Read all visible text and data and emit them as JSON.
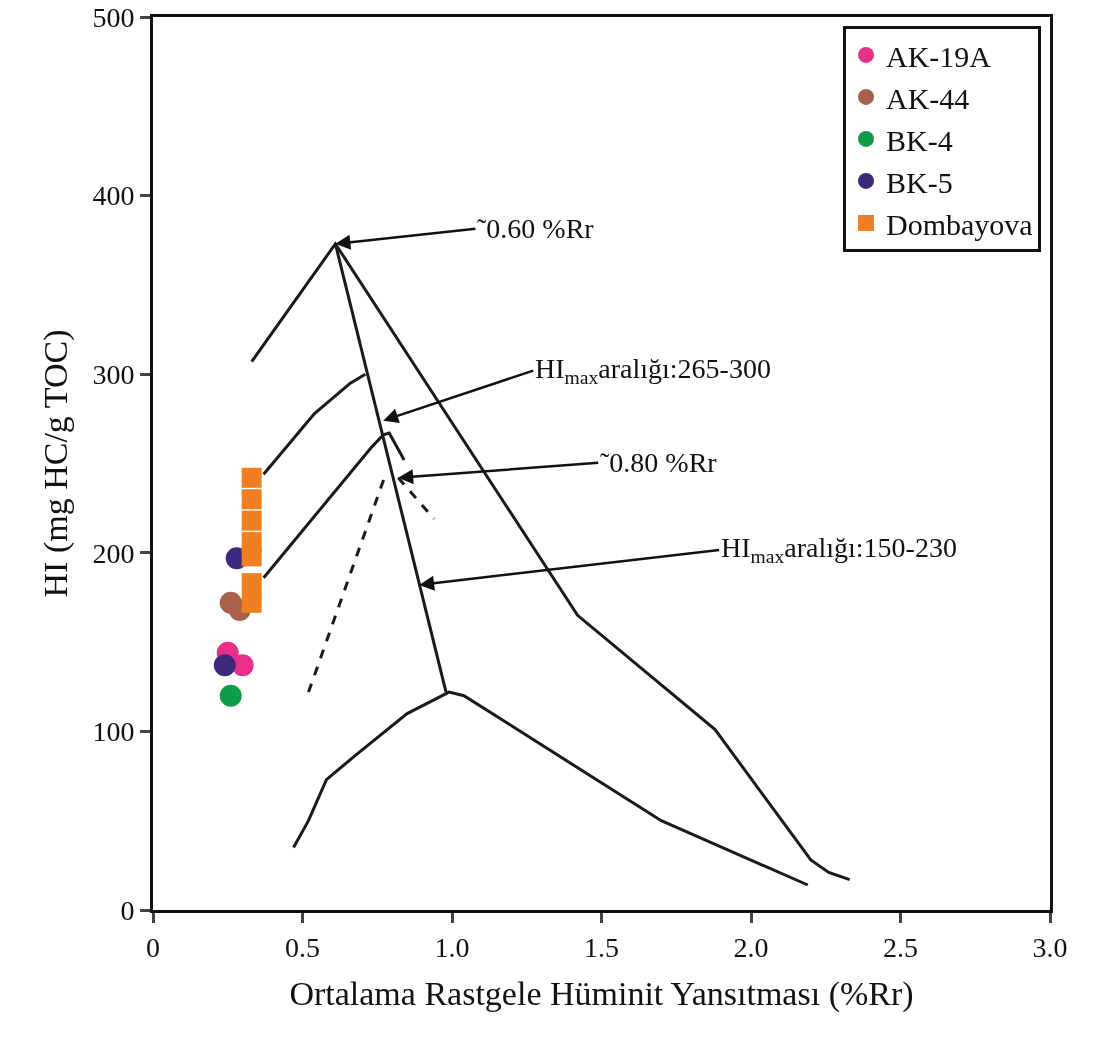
{
  "chart_data": {
    "type": "scatter",
    "xlabel": "Ortalama Rastgele Hüminit Yansıtması (%Rr)",
    "ylabel": "HI (mg HC/g TOC)",
    "xlim": [
      0,
      3
    ],
    "xticks": [
      0,
      {
        "value": 0.5,
        "label": "0.5"
      },
      {
        "value": 1,
        "label": "1.0"
      },
      {
        "value": 1.5,
        "label": "1.5"
      },
      {
        "value": 2,
        "label": "2.0"
      },
      {
        "value": 2.5,
        "label": "2.5"
      },
      {
        "value": 3,
        "label": "3.0"
      }
    ],
    "ylim": [
      0,
      500
    ],
    "yticks": [
      0,
      100,
      200,
      300,
      400,
      500
    ],
    "grid": false,
    "legend": "top right",
    "series": [
      {
        "name": "AK-19A",
        "color": "#e8308a",
        "marker": "circle",
        "x": [
          0.25,
          0.3
        ],
        "values": [
          144,
          137
        ]
      },
      {
        "name": "AK-44",
        "color": "#a8614a",
        "marker": "circle",
        "x": [
          0.26,
          0.29
        ],
        "values": [
          172,
          168
        ]
      },
      {
        "name": "BK-4",
        "color": "#0f9d4a",
        "marker": "circle",
        "x": [
          0.26
        ],
        "values": [
          120
        ]
      },
      {
        "name": "BK-5",
        "color": "#3d2a7f",
        "marker": "circle",
        "x": [
          0.28,
          0.24
        ],
        "values": [
          197,
          137
        ]
      },
      {
        "name": "Dombayova",
        "color": "#f07f22",
        "marker": "square",
        "x": [
          0.33,
          0.33,
          0.33,
          0.33,
          0.33,
          0.33,
          0.33
        ],
        "values": [
          242,
          230,
          218,
          206,
          198,
          183,
          172
        ]
      },
      {
        "type": "line",
        "color": "#1a1a1a",
        "marker": "none",
        "line_style": "solid",
        "x": [
          0.33,
          0.61,
          1.42,
          1.88,
          2.2,
          2.26,
          2.33
        ],
        "values": [
          307,
          373,
          165,
          101,
          28,
          21,
          17
        ]
      },
      {
        "type": "line",
        "color": "#1a1a1a",
        "marker": "none",
        "line_style": "solid",
        "x": [
          0.61,
          0.98
        ],
        "values": [
          373,
          122
        ]
      },
      {
        "type": "line",
        "color": "#1a1a1a",
        "marker": "none",
        "line_style": "solid",
        "x": [
          0.47,
          0.52,
          0.58,
          0.68,
          0.85,
          0.99,
          1.04,
          1.7,
          2.19
        ],
        "values": [
          35,
          50,
          73,
          87,
          110,
          122,
          120,
          50,
          14
        ]
      },
      {
        "type": "line",
        "color": "#1a1a1a",
        "marker": "none",
        "line_style": "solid",
        "x": [
          0.37,
          0.54,
          0.66,
          0.71
        ],
        "values": [
          244,
          278,
          295,
          300
        ]
      },
      {
        "type": "line",
        "color": "#1a1a1a",
        "marker": "none",
        "line_style": "solid",
        "x": [
          0.37,
          0.73,
          0.77,
          0.79,
          0.84
        ],
        "values": [
          186,
          259,
          266,
          267,
          252
        ]
      },
      {
        "type": "line",
        "color": "#1a1a1a",
        "marker": "none",
        "line_style": "dashed",
        "x": [
          0.52,
          0.78
        ],
        "values": [
          122,
          245
        ]
      },
      {
        "type": "line",
        "color": "#1a1a1a",
        "marker": "none",
        "line_style": "dashed",
        "x": [
          0.82,
          0.94
        ],
        "values": [
          242,
          219
        ]
      }
    ],
    "annotations": [
      {
        "text": "˜0.60 %Rr",
        "x": 0.61,
        "y": 373
      },
      {
        "text": "HI$_{max}$aralığı:265-300",
        "x": 0.77,
        "y": 274
      },
      {
        "text": "˜0.80 %Rr",
        "x": 0.82,
        "y": 242
      },
      {
        "text": "HI$_{max}$aralığı:150-230",
        "x": 0.89,
        "y": 182
      }
    ]
  }
}
